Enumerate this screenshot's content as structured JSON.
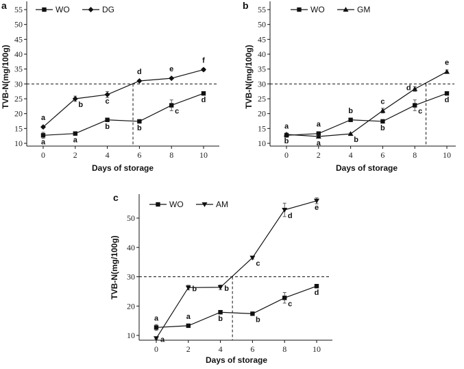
{
  "chart_data": [
    {
      "type": "line",
      "panel_label": "a",
      "xlabel": "Days of storage",
      "ylabel": "TVB-N(mg/100g)",
      "x": [
        0,
        2,
        4,
        6,
        8,
        10
      ],
      "xticks": [
        "0",
        "2",
        "4",
        "6",
        "8",
        "10"
      ],
      "yticks": [
        "10",
        "15",
        "20",
        "25",
        "30",
        "35",
        "40",
        "45",
        "50",
        "55"
      ],
      "ylim": [
        9,
        56
      ],
      "xlim": [
        -1,
        11
      ],
      "threshold_y": 30,
      "threshold_x": 5.6,
      "legend_position": "top-left",
      "series": [
        {
          "name": "WO",
          "marker": "square",
          "values": [
            12.7,
            13.3,
            17.9,
            17.4,
            22.8,
            26.8
          ],
          "errors": [
            1.0,
            0.3,
            0.5,
            0.3,
            1.8,
            0.5
          ],
          "letters": [
            "a",
            "a",
            "b",
            "b",
            "c",
            "d"
          ],
          "letter_pos": [
            "below",
            "below",
            "below",
            "below",
            "below-right",
            "below"
          ]
        },
        {
          "name": "DG",
          "marker": "diamond",
          "values": [
            15.5,
            25.0,
            26.4,
            31.0,
            31.9,
            34.8
          ],
          "errors": [
            0.3,
            0.9,
            1.0,
            0.3,
            0.3,
            0.5
          ],
          "letters": [
            "a",
            "b",
            "c",
            "d",
            "e",
            "f"
          ],
          "letter_pos": [
            "above",
            "below-right",
            "below",
            "above",
            "above",
            "above"
          ]
        }
      ]
    },
    {
      "type": "line",
      "panel_label": "b",
      "xlabel": "Days of storage",
      "ylabel": "TVB-N(mg/100g)",
      "x": [
        0,
        2,
        4,
        6,
        8,
        10
      ],
      "xticks": [
        "0",
        "2",
        "4",
        "6",
        "8",
        "10"
      ],
      "yticks": [
        "10",
        "15",
        "20",
        "25",
        "30",
        "35",
        "40",
        "45",
        "50",
        "55"
      ],
      "ylim": [
        9,
        56
      ],
      "xlim": [
        -1,
        11
      ],
      "threshold_y": 30,
      "threshold_x": 8.7,
      "legend_position": "top-left",
      "series": [
        {
          "name": "WO",
          "marker": "square",
          "values": [
            12.7,
            13.3,
            17.9,
            17.4,
            22.8,
            26.8
          ],
          "errors": [
            0.5,
            0.3,
            0.3,
            0.3,
            1.8,
            0.5
          ],
          "letters": [
            "a",
            "a",
            "b",
            "b",
            "c",
            "d"
          ],
          "letter_pos": [
            "above",
            "above",
            "above",
            "below",
            "below-right",
            "below"
          ]
        },
        {
          "name": "GM",
          "marker": "triangle-up",
          "values": [
            13.0,
            12.3,
            13.2,
            21.0,
            28.3,
            34.1
          ],
          "errors": [
            0.5,
            0.5,
            0.3,
            0.8,
            0.8,
            0.6
          ],
          "letters": [
            "b",
            "a",
            "b",
            "c",
            "d",
            "e"
          ],
          "letter_pos": [
            "below",
            "below",
            "below-right",
            "above",
            "left",
            "above"
          ]
        }
      ]
    },
    {
      "type": "line",
      "panel_label": "c",
      "xlabel": "Days of storage",
      "ylabel": "TVB-N(mg/100g)",
      "x": [
        0,
        2,
        4,
        6,
        8,
        10
      ],
      "xticks": [
        "0",
        "2",
        "4",
        "6",
        "8",
        "10"
      ],
      "yticks": [
        "10",
        "20",
        "30",
        "40",
        "50"
      ],
      "ylim": [
        8.4,
        58.6
      ],
      "xlim": [
        -1,
        11
      ],
      "threshold_y": 30,
      "threshold_x": 4.75,
      "legend_position": "top-left",
      "series": [
        {
          "name": "WO",
          "marker": "square",
          "values": [
            12.7,
            13.3,
            17.9,
            17.4,
            22.8,
            26.8
          ],
          "errors": [
            1.0,
            0.3,
            0.5,
            0.3,
            1.8,
            0.5
          ],
          "letters": [
            "a",
            "a",
            "b",
            "b",
            "c",
            "d"
          ],
          "letter_pos": [
            "above",
            "above",
            "below",
            "below-right",
            "below-right",
            "below"
          ]
        },
        {
          "name": "AM",
          "marker": "triangle-down",
          "values": [
            9.0,
            26.3,
            26.4,
            36.5,
            52.8,
            55.9
          ],
          "errors": [
            0.3,
            0.8,
            0.8,
            0.5,
            2.3,
            1.0
          ],
          "letters": [
            "a",
            "b",
            "b",
            "c",
            "d",
            "e"
          ],
          "letter_pos": [
            "right",
            "right",
            "right",
            "below-right",
            "below-right",
            "below"
          ]
        }
      ]
    }
  ]
}
